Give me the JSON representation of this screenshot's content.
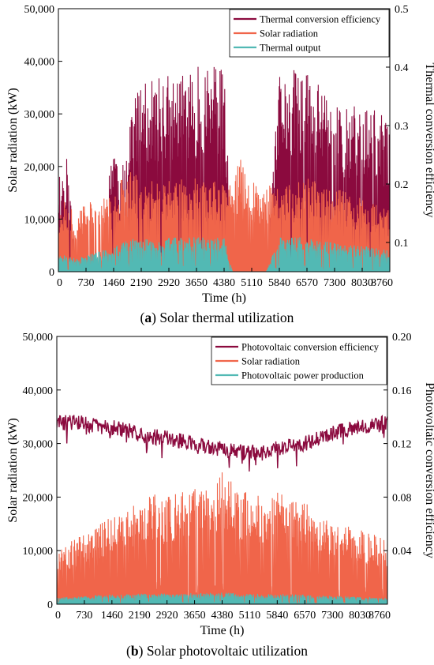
{
  "colors": {
    "efficiency": "#8B0A3E",
    "radiation": "#F0654A",
    "output": "#52B9B4"
  },
  "chart_data": [
    {
      "type": "line",
      "panel": "a",
      "caption_letter": "a",
      "caption_text": " Solar thermal utilization",
      "xlabel": "Time (h)",
      "ylabel": "Solar radiation (kW)",
      "y2label": "Thermal conversion efficiency",
      "xlim": [
        0,
        8760
      ],
      "ylim": [
        0,
        50000
      ],
      "y2lim": [
        0.05,
        0.5
      ],
      "xticks": [
        0,
        730,
        1460,
        2190,
        2920,
        3650,
        4380,
        5110,
        5840,
        6570,
        7300,
        8030,
        8760
      ],
      "yticks": [
        0,
        10000,
        20000,
        30000,
        40000,
        50000
      ],
      "ytick_labels": [
        "0",
        "10,000",
        "20,000",
        "30,000",
        "40,000",
        "50,000"
      ],
      "y2ticks": [
        0.1,
        0.2,
        0.3,
        0.4,
        0.5
      ],
      "y2tick_labels": [
        "0.1",
        "0.2",
        "0.3",
        "0.4",
        "0.5"
      ],
      "legend_position": "top-right",
      "series": [
        {
          "name": "Thermal conversion efficiency",
          "axis": "right",
          "color_key": "efficiency",
          "x": [
            0,
            220,
            440,
            730,
            1100,
            1460,
            1650,
            1900,
            2190,
            2550,
            2920,
            3300,
            3650,
            4000,
            4380,
            4600,
            4800,
            5110,
            5500,
            5840,
            6200,
            6570,
            6900,
            7300,
            7650,
            8030,
            8400,
            8760
          ],
          "y": [
            0.22,
            0.25,
            0.08,
            0.05,
            0.05,
            0.3,
            0.2,
            0.35,
            0.37,
            0.38,
            0.39,
            0.39,
            0.4,
            0.41,
            0.4,
            0.05,
            0.05,
            0.05,
            0.05,
            0.39,
            0.4,
            0.4,
            0.38,
            0.35,
            0.33,
            0.34,
            0.33,
            0.3
          ]
        },
        {
          "name": "Solar radiation",
          "axis": "left",
          "color_key": "radiation",
          "x": [
            0,
            220,
            440,
            730,
            1100,
            1460,
            1650,
            1900,
            2190,
            2550,
            2920,
            3300,
            3650,
            4000,
            4380,
            4600,
            4800,
            5110,
            5500,
            5840,
            6200,
            6570,
            6900,
            7300,
            7650,
            8030,
            8400,
            8760
          ],
          "y": [
            12000,
            14000,
            11000,
            13000,
            15000,
            14000,
            18000,
            19000,
            18000,
            17000,
            18000,
            17500,
            18000,
            17000,
            17500,
            16000,
            22000,
            17000,
            16500,
            16000,
            17000,
            18000,
            17000,
            16000,
            15000,
            14000,
            13000,
            12000
          ]
        },
        {
          "name": "Thermal output",
          "axis": "left",
          "color_key": "output",
          "x": [
            0,
            220,
            440,
            730,
            1100,
            1460,
            1650,
            1900,
            2190,
            2550,
            2920,
            3300,
            3650,
            4000,
            4380,
            4600,
            4800,
            5110,
            5500,
            5840,
            6200,
            6570,
            6900,
            7300,
            7650,
            8030,
            8400,
            8760
          ],
          "y": [
            3000,
            3500,
            2500,
            3000,
            4000,
            4500,
            6000,
            6500,
            6500,
            6000,
            6500,
            6500,
            6800,
            6500,
            6500,
            0,
            0,
            0,
            0,
            6500,
            6800,
            6500,
            6000,
            5500,
            5000,
            5000,
            4500,
            4000
          ]
        }
      ]
    },
    {
      "type": "line",
      "panel": "b",
      "caption_letter": "b",
      "caption_text": " Solar photovoltaic utilization",
      "xlabel": "Time (h)",
      "ylabel": "Solar radiation (kW)",
      "y2label": "Photovoltaic conversion efficiency",
      "xlim": [
        0,
        8760
      ],
      "ylim": [
        0,
        50000
      ],
      "y2lim": [
        0,
        0.2
      ],
      "xticks": [
        0,
        730,
        1460,
        2190,
        2920,
        3650,
        4380,
        5110,
        5840,
        6570,
        7300,
        8030,
        8760
      ],
      "yticks": [
        0,
        10000,
        20000,
        30000,
        40000,
        50000
      ],
      "ytick_labels": [
        "0",
        "10,000",
        "20,000",
        "30,000",
        "40,000",
        "50,000"
      ],
      "y2ticks": [
        0.04,
        0.08,
        0.12,
        0.16,
        0.2
      ],
      "y2tick_labels": [
        "0.04",
        "0.08",
        "0.12",
        "0.16",
        "0.20"
      ],
      "legend_position": "top-right",
      "series": [
        {
          "name": "Photovoltaic conversion efficiency",
          "axis": "right",
          "color_key": "efficiency",
          "x": [
            0,
            365,
            730,
            1095,
            1460,
            1825,
            2190,
            2555,
            2920,
            3285,
            3650,
            4015,
            4380,
            4745,
            5110,
            5475,
            5840,
            6205,
            6570,
            6935,
            7300,
            7665,
            8030,
            8395,
            8760
          ],
          "y": [
            0.135,
            0.136,
            0.135,
            0.133,
            0.132,
            0.13,
            0.127,
            0.125,
            0.124,
            0.122,
            0.12,
            0.118,
            0.116,
            0.114,
            0.113,
            0.114,
            0.116,
            0.118,
            0.12,
            0.124,
            0.128,
            0.131,
            0.133,
            0.134,
            0.135
          ]
        },
        {
          "name": "Solar radiation",
          "axis": "left",
          "color_key": "radiation",
          "x": [
            0,
            365,
            730,
            1095,
            1460,
            1825,
            2190,
            2555,
            2920,
            3285,
            3650,
            4015,
            4380,
            4745,
            5110,
            5475,
            5840,
            6205,
            6570,
            6935,
            7300,
            7665,
            8030,
            8395,
            8760
          ],
          "y": [
            10000,
            12000,
            13000,
            15000,
            17000,
            18000,
            20000,
            21000,
            20000,
            21000,
            21500,
            22000,
            26000,
            22000,
            21000,
            20500,
            21000,
            20000,
            19000,
            17000,
            16000,
            15000,
            14000,
            13000,
            12000
          ]
        },
        {
          "name": "Photovoltaic power production",
          "axis": "left",
          "color_key": "output",
          "x": [
            0,
            365,
            730,
            1095,
            1460,
            1825,
            2190,
            2555,
            2920,
            3285,
            3650,
            4015,
            4380,
            4745,
            5110,
            5475,
            5840,
            6205,
            6570,
            6935,
            7300,
            7665,
            8030,
            8395,
            8760
          ],
          "y": [
            1200,
            1400,
            1500,
            1700,
            1800,
            1900,
            2000,
            2000,
            2000,
            2100,
            2100,
            2100,
            2200,
            2100,
            2000,
            2000,
            2000,
            1900,
            1800,
            1700,
            1600,
            1500,
            1400,
            1300,
            1200
          ]
        }
      ]
    }
  ]
}
